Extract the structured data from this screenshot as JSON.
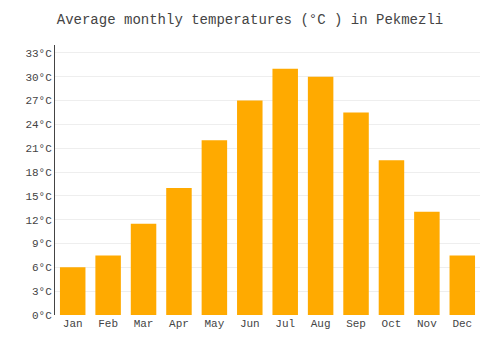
{
  "chart_data": {
    "type": "bar",
    "title": "Average monthly temperatures (°C ) in Pekmezli",
    "categories": [
      "Jan",
      "Feb",
      "Mar",
      "Apr",
      "May",
      "Jun",
      "Jul",
      "Aug",
      "Sep",
      "Oct",
      "Nov",
      "Dec"
    ],
    "values": [
      6,
      7.5,
      11.5,
      16,
      22,
      27,
      31,
      30,
      25.5,
      19.5,
      13,
      7.5
    ],
    "color": "#FFAA00",
    "ylim": [
      0,
      34
    ],
    "yticks": [
      {
        "value": 0,
        "label": "0°C"
      },
      {
        "value": 3,
        "label": "3°C"
      },
      {
        "value": 6,
        "label": "6°C"
      },
      {
        "value": 9,
        "label": "9°C"
      },
      {
        "value": 12,
        "label": "12°C"
      },
      {
        "value": 15,
        "label": "15°C"
      },
      {
        "value": 18,
        "label": "18°C"
      },
      {
        "value": 21,
        "label": "21°C"
      },
      {
        "value": 24,
        "label": "24°C"
      },
      {
        "value": 27,
        "label": "27°C"
      },
      {
        "value": 30,
        "label": "30°C"
      },
      {
        "value": 33,
        "label": "33°C"
      }
    ],
    "grid": true
  }
}
